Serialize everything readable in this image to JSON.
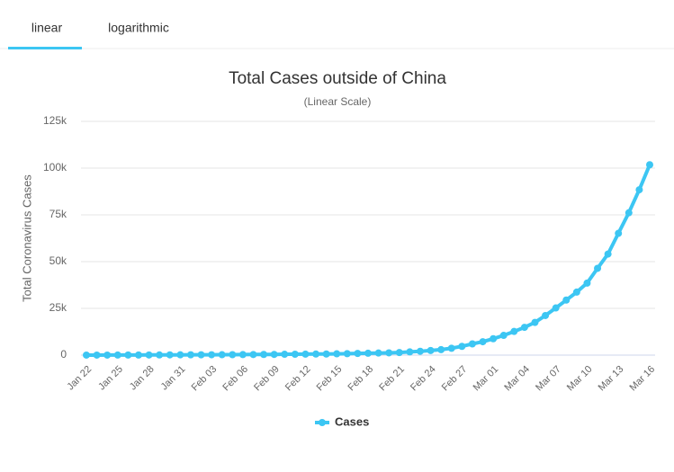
{
  "tabs": [
    "linear",
    "logarithmic"
  ],
  "chart_data": {
    "type": "line",
    "title": "Total Cases outside of China",
    "subtitle": "(Linear Scale)",
    "y_axis_label": "Total Coronavirus Cases",
    "categories": [
      "Jan 22",
      null,
      null,
      "Jan 25",
      null,
      null,
      "Jan 28",
      null,
      null,
      "Jan 31",
      null,
      null,
      "Feb 03",
      null,
      null,
      "Feb 06",
      null,
      null,
      "Feb 09",
      null,
      null,
      "Feb 12",
      null,
      null,
      "Feb 15",
      null,
      null,
      "Feb 18",
      null,
      null,
      "Feb 21",
      null,
      null,
      "Feb 24",
      null,
      null,
      "Feb 27",
      null,
      null,
      "Mar 01",
      null,
      null,
      "Mar 04",
      null,
      null,
      "Mar 07",
      null,
      null,
      "Mar 10",
      null,
      null,
      "Mar 13",
      null,
      null,
      "Mar 16"
    ],
    "series": [
      {
        "name": "Cases",
        "color": "#3cc6f3",
        "values": [
          9,
          15,
          30,
          40,
          56,
          66,
          84,
          102,
          131,
          159,
          173,
          186,
          190,
          221,
          248,
          278,
          330,
          354,
          382,
          461,
          481,
          526,
          587,
          608,
          697,
          781,
          896,
          999,
          1124,
          1212,
          1385,
          1715,
          2055,
          2459,
          2918,
          3664,
          4691,
          6009,
          7169,
          8774,
          10566,
          12668,
          14856,
          17481,
          21179,
          25225,
          29447,
          33696,
          38500,
          46414,
          54051,
          65126,
          76133,
          88410,
          101800
        ]
      }
    ],
    "ylim": [
      0,
      125000
    ],
    "yticks": [
      0,
      {
        "value": 25000,
        "label": "25k"
      },
      {
        "value": 50000,
        "label": "50k"
      },
      {
        "value": 75000,
        "label": "75k"
      },
      {
        "value": 100000,
        "label": "100k"
      },
      {
        "value": 125000,
        "label": "125k"
      }
    ],
    "grid": true
  }
}
